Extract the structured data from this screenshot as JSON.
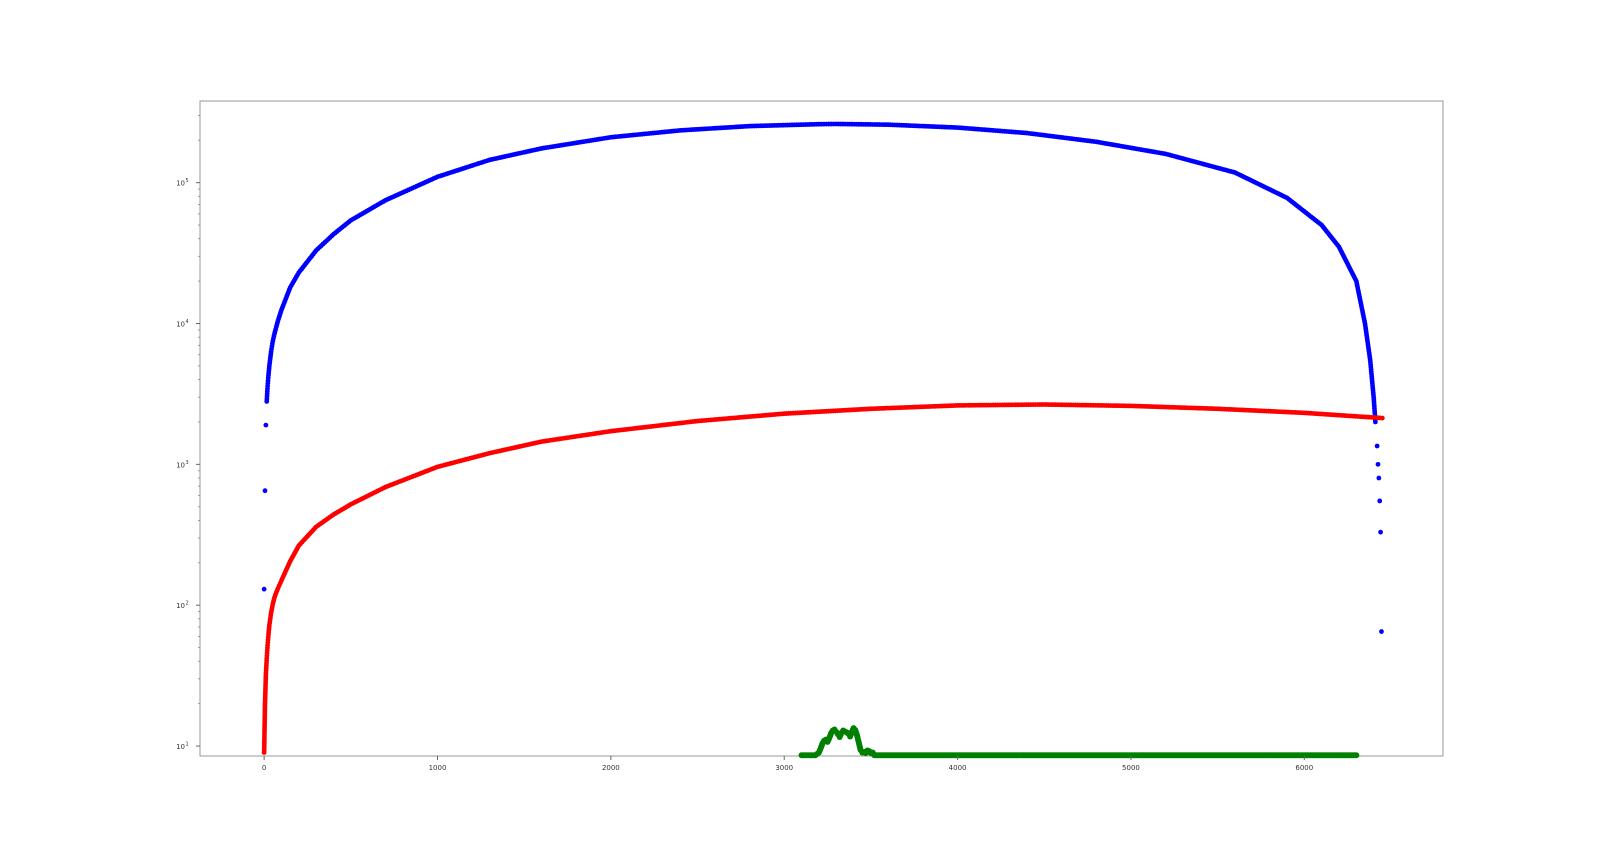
{
  "chart_data": {
    "type": "scatter",
    "title": "",
    "xlabel": "",
    "ylabel": "",
    "xlim": [
      -370,
      6800
    ],
    "ylim": [
      8.5,
      380000
    ],
    "yscale": "log",
    "grid": false,
    "legend": "none",
    "x_ticks": [
      {
        "value": 0,
        "label": "0"
      },
      {
        "value": 1000,
        "label": "1000"
      },
      {
        "value": 2000,
        "label": "2000"
      },
      {
        "value": 3000,
        "label": "3000"
      },
      {
        "value": 4000,
        "label": "4000"
      },
      {
        "value": 5000,
        "label": "5000"
      },
      {
        "value": 6000,
        "label": "6000"
      }
    ],
    "y_ticks": [
      {
        "value": 10,
        "base": "10",
        "exp": "1"
      },
      {
        "value": 100,
        "base": "10",
        "exp": "2"
      },
      {
        "value": 1000,
        "base": "10",
        "exp": "3"
      },
      {
        "value": 10000,
        "base": "10",
        "exp": "4"
      },
      {
        "value": 100000,
        "base": "10",
        "exp": "5"
      }
    ],
    "series": [
      {
        "color": "#0000ff",
        "x": [
          0,
          5,
          10,
          15,
          20,
          25,
          30,
          40,
          50,
          60,
          80,
          100,
          150,
          200,
          300,
          400,
          500,
          700,
          1000,
          1300,
          1600,
          2000,
          2400,
          2800,
          3200,
          3300,
          3600,
          4000,
          4400,
          4800,
          5200,
          5600,
          5900,
          6100,
          6200,
          6300,
          6350,
          6380,
          6400,
          6410,
          6420,
          6425,
          6430,
          6435,
          6440,
          6445
        ],
        "y": [
          130,
          650,
          1900,
          2800,
          3600,
          4300,
          5000,
          6300,
          7500,
          8500,
          10500,
          12500,
          18000,
          23000,
          33000,
          43000,
          54000,
          75000,
          110000,
          145000,
          175000,
          210000,
          235000,
          252000,
          260000,
          261000,
          258000,
          246000,
          225000,
          195000,
          160000,
          118000,
          78000,
          50000,
          35000,
          20000,
          10000,
          5500,
          3000,
          2000,
          1350,
          1000,
          800,
          550,
          330,
          65
        ]
      },
      {
        "color": "#ff0000",
        "x": [
          0,
          5,
          10,
          15,
          20,
          25,
          30,
          40,
          50,
          60,
          70,
          80,
          100,
          150,
          200,
          300,
          400,
          500,
          700,
          1000,
          1300,
          1600,
          2000,
          2500,
          3000,
          3500,
          4000,
          4500,
          5000,
          5500,
          6000,
          6450
        ],
        "y": [
          9,
          20,
          32,
          42,
          52,
          62,
          72,
          88,
          102,
          114,
          123,
          132,
          150,
          205,
          265,
          360,
          440,
          520,
          690,
          960,
          1200,
          1450,
          1720,
          2030,
          2290,
          2480,
          2620,
          2660,
          2600,
          2480,
          2320,
          2130
        ]
      },
      {
        "color": "#008000",
        "x": [
          3100,
          3140,
          3180,
          3200,
          3210,
          3220,
          3230,
          3240,
          3250,
          3260,
          3270,
          3280,
          3290,
          3300,
          3310,
          3320,
          3330,
          3340,
          3350,
          3360,
          3370,
          3380,
          3390,
          3400,
          3410,
          3420,
          3430,
          3440,
          3450,
          3460,
          3470,
          3480,
          3490,
          3500,
          3510,
          3520,
          6100,
          6300
        ],
        "y": [
          8.6,
          8.6,
          8.6,
          9.0,
          9.6,
          10.4,
          10.9,
          11.1,
          10.7,
          11.4,
          12.3,
          12.9,
          13.1,
          12.6,
          12.1,
          11.6,
          12.4,
          12.9,
          12.7,
          12.5,
          12.2,
          11.7,
          12.6,
          13.4,
          13.0,
          11.9,
          10.6,
          9.4,
          9.0,
          9.1,
          8.9,
          9.3,
          9.2,
          8.9,
          9.0,
          8.6,
          8.6,
          8.6
        ]
      }
    ]
  }
}
